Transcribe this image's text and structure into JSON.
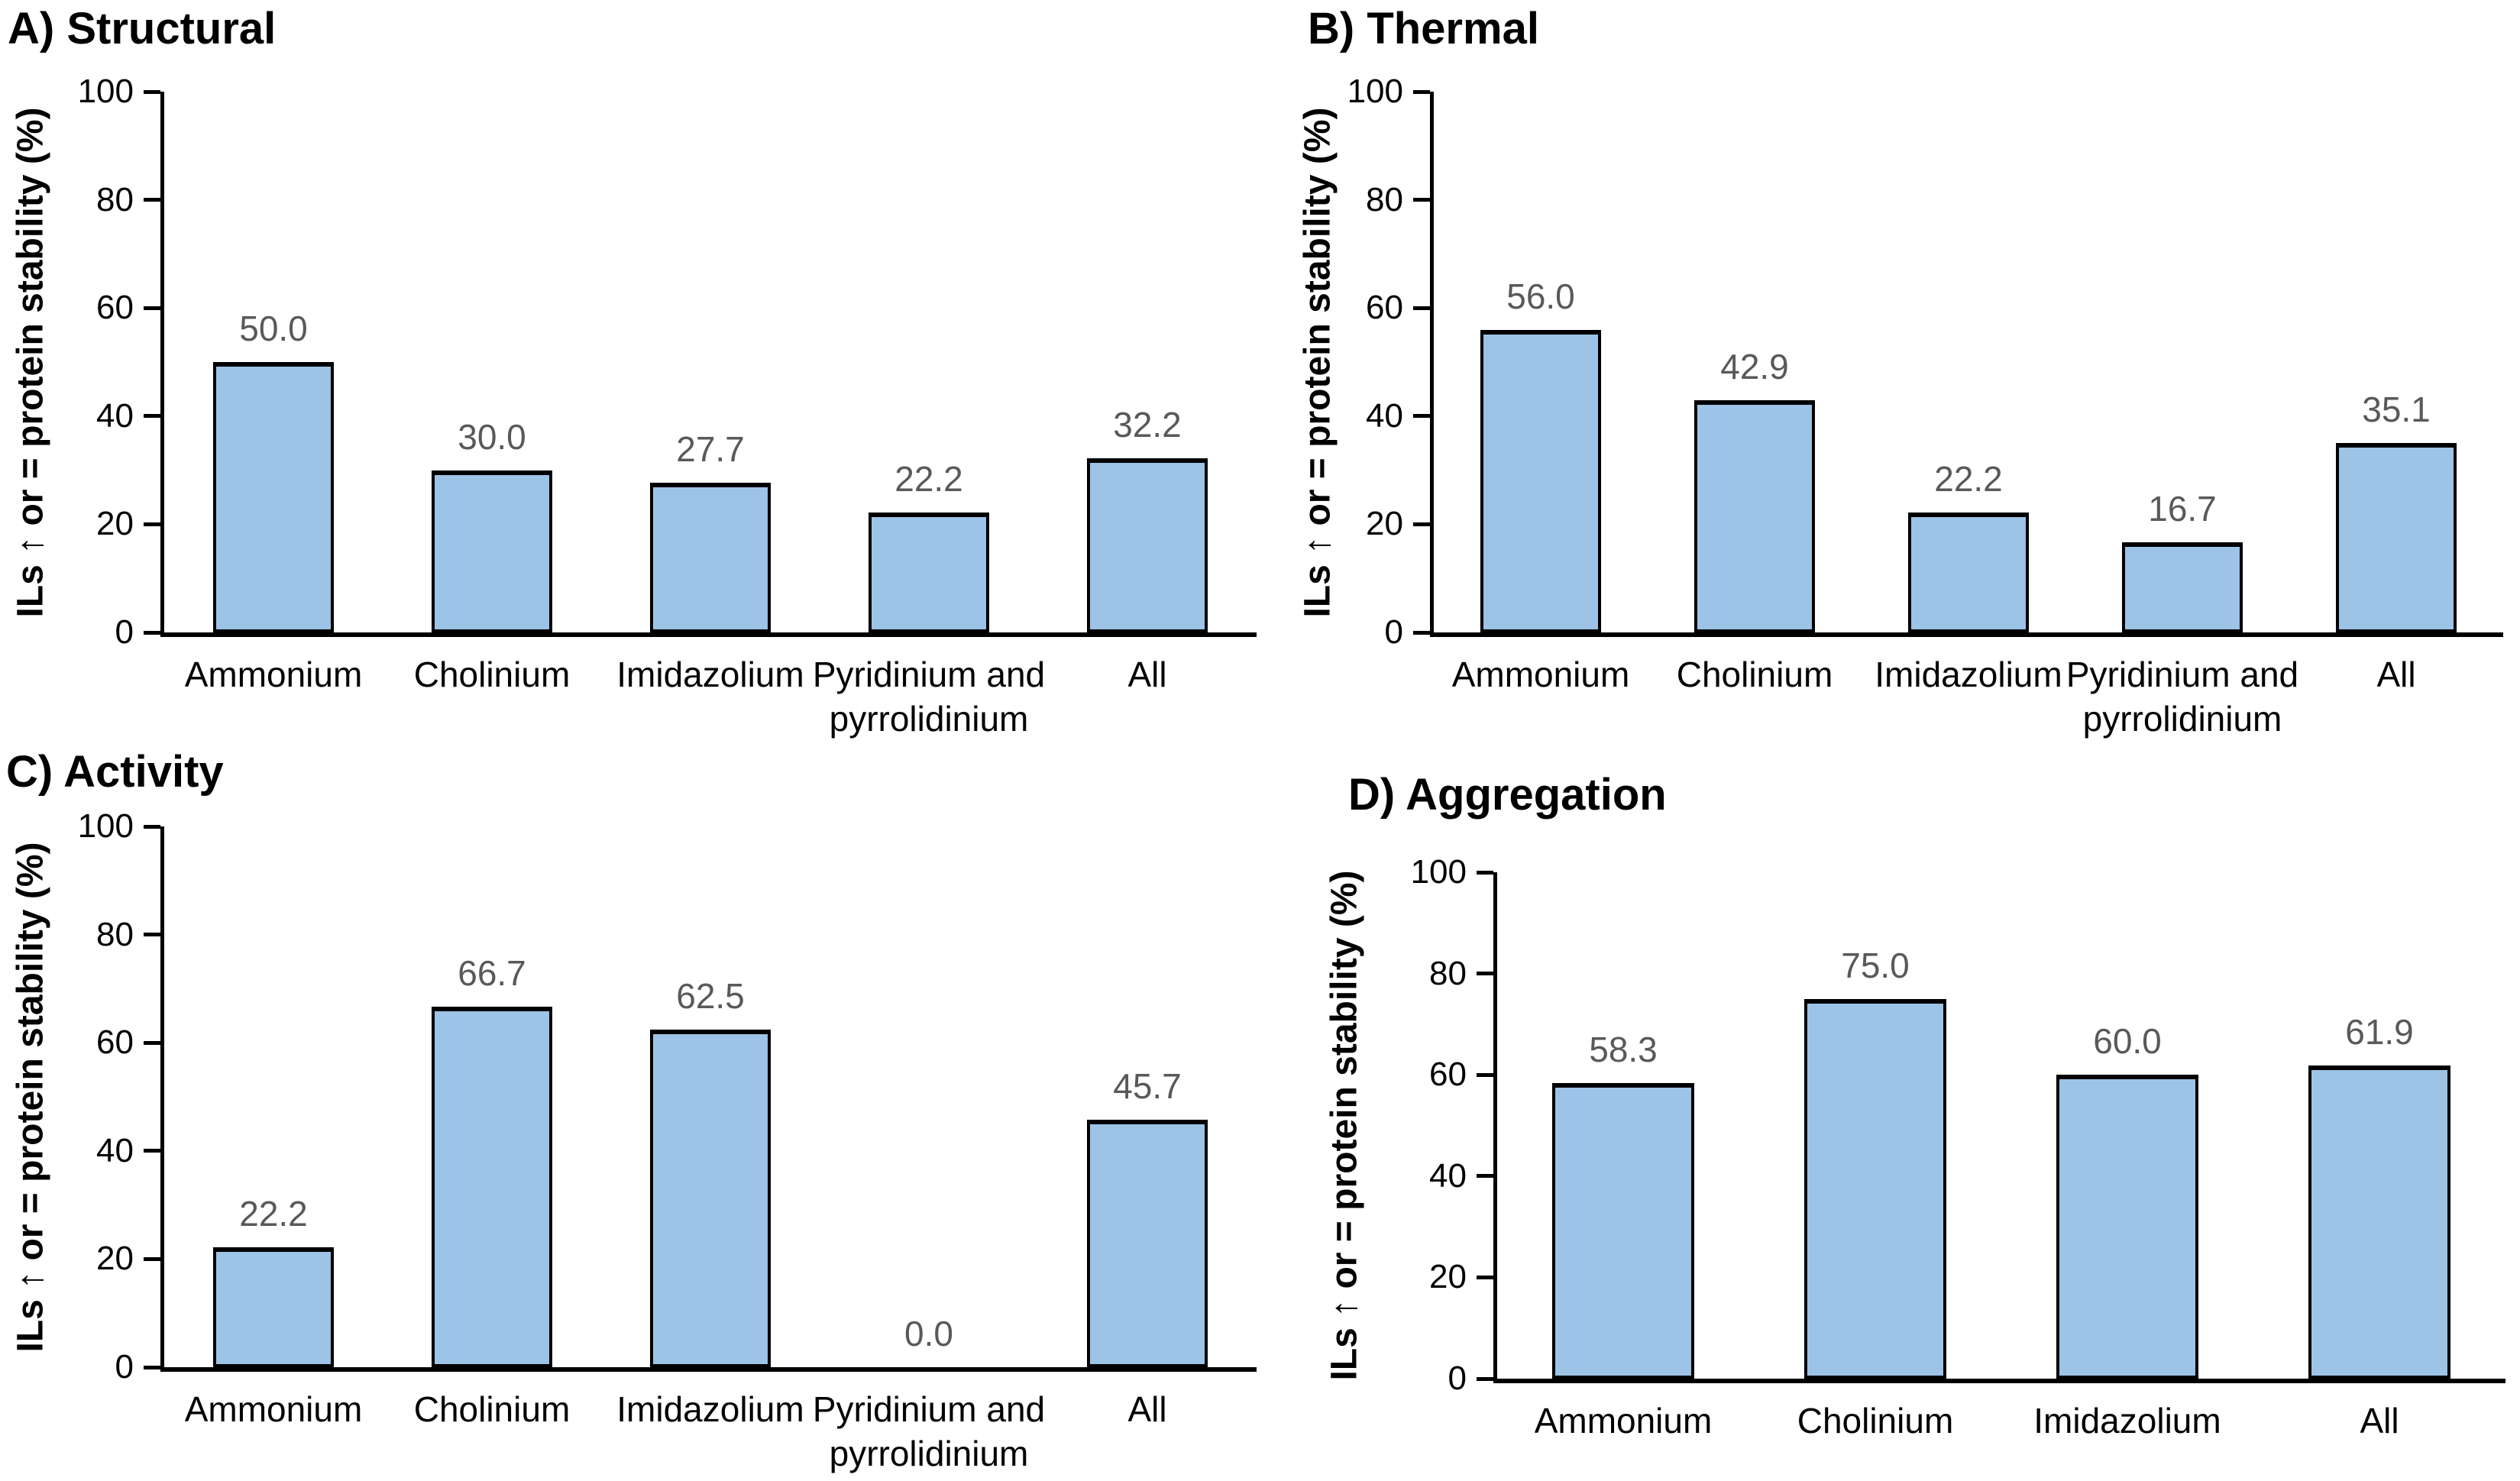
{
  "colors": {
    "bar_fill": "#9DC3E6",
    "bar_border": "#000000",
    "value_label": "#595959",
    "axis": "#000000",
    "tick_label": "#000000",
    "category_label": "#000000"
  },
  "chart_data": [
    {
      "type": "bar",
      "title": "A) Structural",
      "ylabel": "ILs ↑ or = protein stability (%)",
      "ylim": [
        0,
        100
      ],
      "yticks": [
        0,
        20,
        40,
        60,
        80,
        100
      ],
      "grid": false,
      "legend": false,
      "categories": [
        "Ammonium",
        "Cholinium",
        "Imidazolium",
        "Pyridinium and\npyrrolidinium",
        "All"
      ],
      "values": [
        50.0,
        30.0,
        27.7,
        22.2,
        32.2
      ],
      "value_labels": [
        "50.0",
        "30.0",
        "27.7",
        "22.2",
        "32.2"
      ]
    },
    {
      "type": "bar",
      "title": "B) Thermal",
      "ylabel": "ILs ↑ or = protein stability (%)",
      "ylim": [
        0,
        100
      ],
      "yticks": [
        0,
        20,
        40,
        60,
        80,
        100
      ],
      "grid": false,
      "legend": false,
      "categories": [
        "Ammonium",
        "Cholinium",
        "Imidazolium",
        "Pyridinium and\npyrrolidinium",
        "All"
      ],
      "values": [
        56.0,
        42.9,
        22.2,
        16.7,
        35.1
      ],
      "value_labels": [
        "56.0",
        "42.9",
        "22.2",
        "16.7",
        "35.1"
      ]
    },
    {
      "type": "bar",
      "title": "C) Activity",
      "ylabel": "ILs ↑ or = protein stability (%)",
      "ylim": [
        0,
        100
      ],
      "yticks": [
        0,
        20,
        40,
        60,
        80,
        100
      ],
      "grid": false,
      "legend": false,
      "categories": [
        "Ammonium",
        "Cholinium",
        "Imidazolium",
        "Pyridinium and\npyrrolidinium",
        "All"
      ],
      "values": [
        22.2,
        66.7,
        62.5,
        0.0,
        45.7
      ],
      "value_labels": [
        "22.2",
        "66.7",
        "62.5",
        "0.0",
        "45.7"
      ]
    },
    {
      "type": "bar",
      "title": "D) Aggregation",
      "ylabel": "ILs ↑ or = protein stability (%)",
      "ylim": [
        0,
        100
      ],
      "yticks": [
        0,
        20,
        40,
        60,
        80,
        100
      ],
      "grid": false,
      "legend": false,
      "categories": [
        "Ammonium",
        "Cholinium",
        "Imidazolium",
        "All"
      ],
      "values": [
        58.3,
        75.0,
        60.0,
        61.9
      ],
      "value_labels": [
        "58.3",
        "75.0",
        "60.0",
        "61.9"
      ]
    }
  ]
}
